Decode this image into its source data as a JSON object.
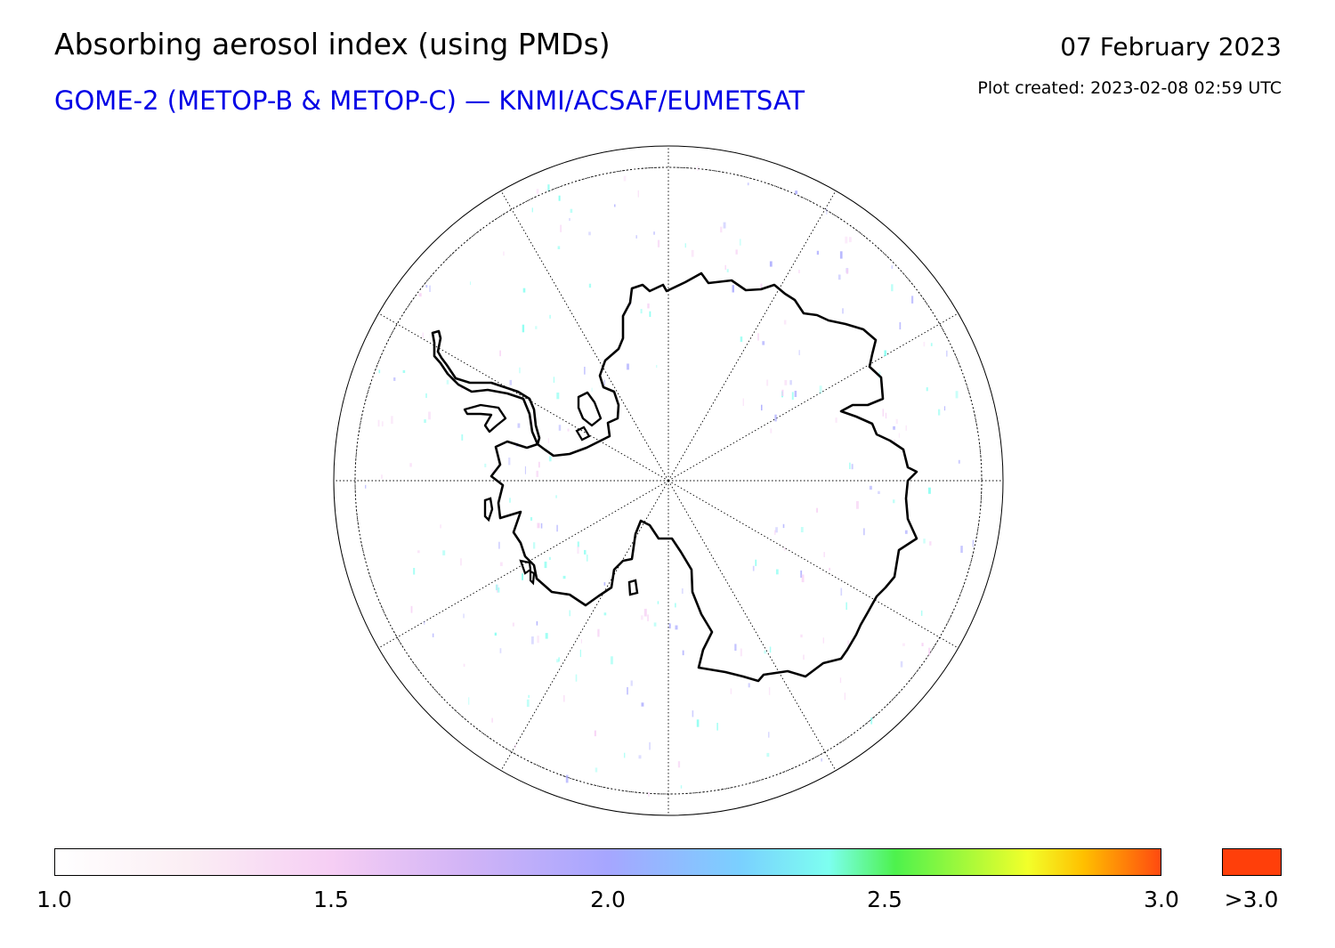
{
  "header": {
    "title": "Absorbing aerosol index (using PMDs)",
    "subtitle": "GOME-2 (METOP-B & METOP-C) — KNMI/ACSAF/EUMETSAT",
    "date": "07 February 2023",
    "created": "Plot created: 2023-02-08 02:59 UTC"
  },
  "map": {
    "projection": "south-polar-stereographic",
    "region": "Antarctica",
    "graticule": "dotted",
    "coastline_color": "#000000"
  },
  "colorbar": {
    "ticks": [
      "1.0",
      "1.5",
      "2.0",
      "2.5",
      "3.0"
    ],
    "tick_values": [
      1.0,
      1.5,
      2.0,
      2.5,
      3.0
    ],
    "range": [
      1.0,
      3.0
    ],
    "over_label": ">3.0",
    "over_color": "#ff3f0a",
    "colors": [
      "#ffffff",
      "#f6cef4",
      "#a6a6ff",
      "#7dfff0",
      "#4df24d",
      "#f2ff2a",
      "#ff4a10"
    ]
  }
}
